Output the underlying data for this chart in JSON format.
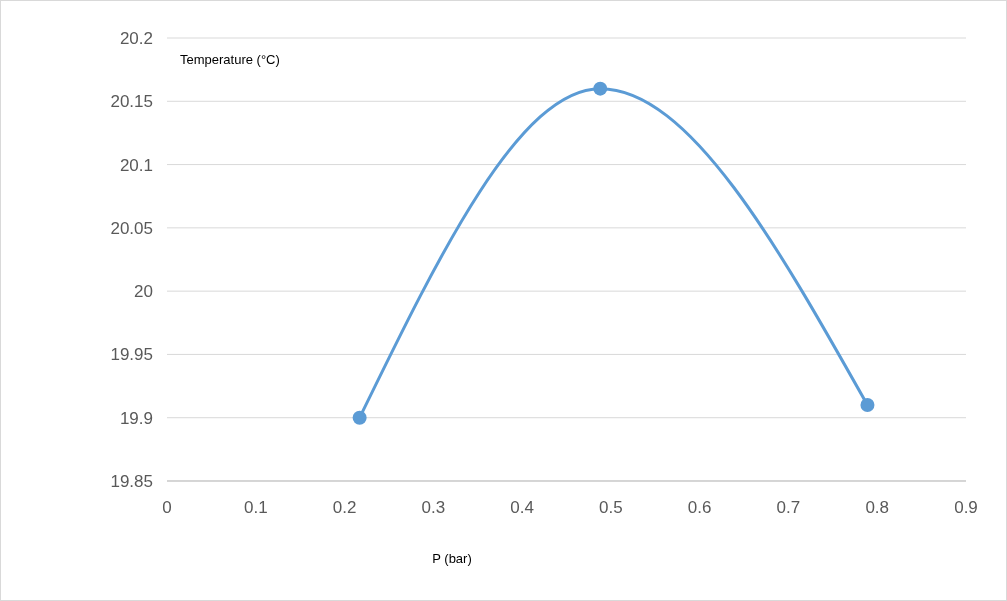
{
  "chart_data": {
    "type": "line",
    "xlabel": "P (bar)",
    "ylabel": "Temperature (°C)",
    "series": [
      {
        "color": "#5b9bd5",
        "x": [
          0.217,
          0.488,
          0.789
        ],
        "values": [
          19.9,
          20.16,
          19.91
        ]
      }
    ],
    "xlim": [
      0,
      0.9
    ],
    "xticks": [
      0,
      0.1,
      0.2,
      0.3,
      0.4,
      0.5,
      0.6,
      0.7,
      0.8,
      0.9
    ],
    "ylim": [
      19.85,
      20.2
    ],
    "yticks": [
      19.85,
      19.9,
      19.95,
      20,
      20.05,
      20.1,
      20.15,
      20.2
    ],
    "grid": "y",
    "marker": "circle",
    "line_style": "solid"
  }
}
